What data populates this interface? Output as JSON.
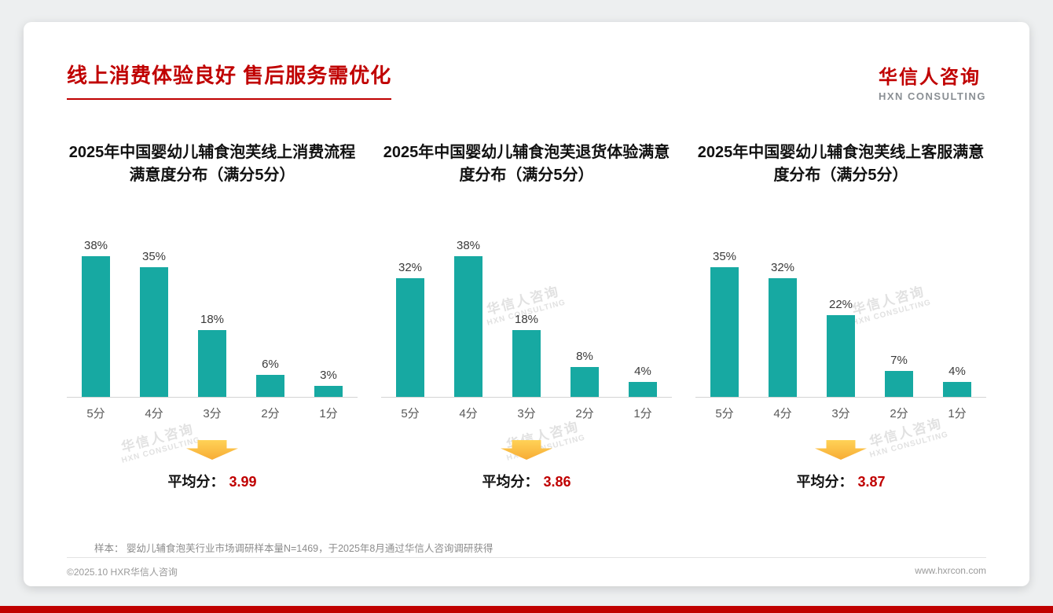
{
  "header": {
    "title": "线上消费体验良好 售后服务需优化",
    "logo_cn": "华信人咨询",
    "logo_en": "HXN CONSULTING"
  },
  "watermark": {
    "line1": "华信人咨询",
    "line2": "HXN CONSULTING"
  },
  "chart_data": [
    {
      "type": "bar",
      "title": "2025年中国婴幼儿辅食泡芙线上消费流程满意度分布（满分5分）",
      "categories": [
        "5分",
        "4分",
        "3分",
        "2分",
        "1分"
      ],
      "values": [
        38,
        35,
        18,
        6,
        3
      ],
      "unit": "%",
      "xlabel": "",
      "ylabel": "",
      "ylim": [
        0,
        45
      ],
      "grid": false,
      "average_label": "平均分：",
      "average_value": "3.99"
    },
    {
      "type": "bar",
      "title": "2025年中国婴幼儿辅食泡芙退货体验满意度分布（满分5分）",
      "categories": [
        "5分",
        "4分",
        "3分",
        "2分",
        "1分"
      ],
      "values": [
        32,
        38,
        18,
        8,
        4
      ],
      "unit": "%",
      "xlabel": "",
      "ylabel": "",
      "ylim": [
        0,
        45
      ],
      "grid": false,
      "average_label": "平均分：",
      "average_value": "3.86"
    },
    {
      "type": "bar",
      "title": "2025年中国婴幼儿辅食泡芙线上客服满意度分布（满分5分）",
      "categories": [
        "5分",
        "4分",
        "3分",
        "2分",
        "1分"
      ],
      "values": [
        35,
        32,
        22,
        7,
        4
      ],
      "unit": "%",
      "xlabel": "",
      "ylabel": "",
      "ylim": [
        0,
        45
      ],
      "grid": false,
      "average_label": "平均分：",
      "average_value": "3.87"
    }
  ],
  "footer": {
    "note": "样本： 婴幼儿辅食泡芙行业市场调研样本量N=1469，于2025年8月通过华信人咨询调研获得",
    "copyright": "©2025.10 HXR华信人咨询",
    "website": "www.hxrcon.com"
  },
  "colors": {
    "bar_teal": "#17a9a2",
    "title_red": "#c00000",
    "average_red": "#c00000",
    "arrow_yellow": "#f7ac35"
  }
}
